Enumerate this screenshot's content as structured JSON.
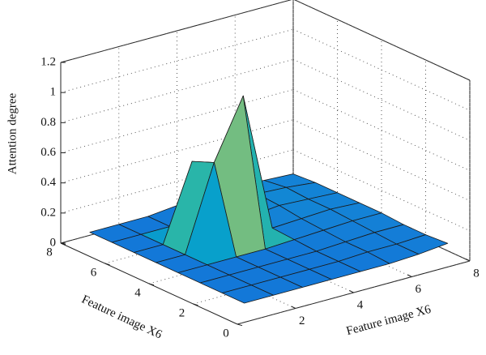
{
  "chart_data": {
    "type": "surface",
    "xlabel": "Feature image X6",
    "ylabel": "Feature image X6",
    "zlabel": "Attention degree",
    "x": [
      1,
      2,
      3,
      4,
      5,
      6,
      7,
      8
    ],
    "y": [
      1,
      2,
      3,
      4,
      5,
      6,
      7,
      8
    ],
    "z": [
      [
        0.02,
        0.02,
        0.02,
        0.02,
        0.02,
        0.02,
        0.03,
        0.05
      ],
      [
        0.02,
        0.02,
        0.02,
        0.02,
        0.02,
        0.03,
        0.03,
        0.04
      ],
      [
        0.02,
        0.02,
        0.02,
        0.02,
        0.02,
        0.03,
        0.04,
        0.04
      ],
      [
        0.02,
        0.02,
        0.02,
        0.02,
        0.03,
        0.04,
        0.05,
        0.05
      ],
      [
        0.02,
        0.02,
        0.58,
        0.97,
        0.04,
        0.05,
        0.06,
        0.05
      ],
      [
        0.02,
        0.02,
        0.52,
        0.03,
        0.05,
        0.07,
        0.06,
        0.05
      ],
      [
        0.02,
        0.02,
        0.02,
        0.03,
        0.06,
        0.08,
        0.07,
        0.05
      ],
      [
        0.02,
        0.02,
        0.02,
        0.04,
        0.06,
        0.06,
        0.05,
        0.04
      ]
    ],
    "xlim": [
      0,
      8
    ],
    "ylim": [
      0,
      8
    ],
    "zlim": [
      0,
      1.2
    ],
    "xticks": [
      2,
      4,
      6,
      8
    ],
    "yticks": [
      0,
      2,
      4,
      6,
      8
    ],
    "zticks": [
      0,
      0.2,
      0.4,
      0.6,
      0.8,
      1,
      1.2
    ],
    "grid": true,
    "colormap": [
      "#352a87",
      "#0f5cdd",
      "#1481d6",
      "#06a4ca",
      "#2eb7a4",
      "#87bf77",
      "#d1bb59",
      "#fec832",
      "#f9fb0e"
    ],
    "clim": [
      -0.2,
      0.8
    ]
  }
}
